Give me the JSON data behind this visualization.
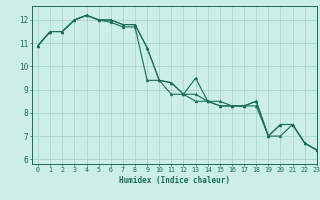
{
  "xlabel": "Humidex (Indice chaleur)",
  "bg_color": "#cceee8",
  "grid_color": "#aad4cc",
  "line_color": "#1a6b5a",
  "xlim": [
    -0.5,
    23
  ],
  "ylim": [
    5.8,
    12.6
  ],
  "yticks": [
    6,
    7,
    8,
    9,
    10,
    11,
    12
  ],
  "xticks": [
    0,
    1,
    2,
    3,
    4,
    5,
    6,
    7,
    8,
    9,
    10,
    11,
    12,
    13,
    14,
    15,
    16,
    17,
    18,
    19,
    20,
    21,
    22,
    23
  ],
  "series": [
    [
      10.9,
      11.5,
      11.5,
      12.0,
      12.2,
      12.0,
      11.9,
      11.7,
      11.7,
      9.4,
      9.4,
      8.8,
      8.8,
      8.8,
      8.5,
      8.5,
      8.3,
      8.3,
      8.5,
      7.0,
      7.5,
      7.5,
      6.7,
      6.4
    ],
    [
      10.9,
      11.5,
      11.5,
      12.0,
      12.2,
      12.0,
      12.0,
      11.8,
      11.8,
      10.8,
      9.4,
      9.3,
      8.8,
      8.5,
      8.5,
      8.3,
      8.3,
      8.3,
      8.3,
      7.0,
      7.0,
      7.5,
      6.7,
      6.4
    ],
    [
      10.9,
      11.5,
      11.5,
      12.0,
      12.2,
      12.0,
      12.0,
      11.8,
      11.8,
      10.8,
      9.4,
      9.3,
      8.8,
      9.5,
      8.5,
      8.3,
      8.3,
      8.3,
      8.5,
      7.0,
      7.5,
      7.5,
      6.7,
      6.4
    ]
  ],
  "xlabel_fontsize": 5.5,
  "tick_fontsize": 4.8,
  "ytick_fontsize": 5.5
}
